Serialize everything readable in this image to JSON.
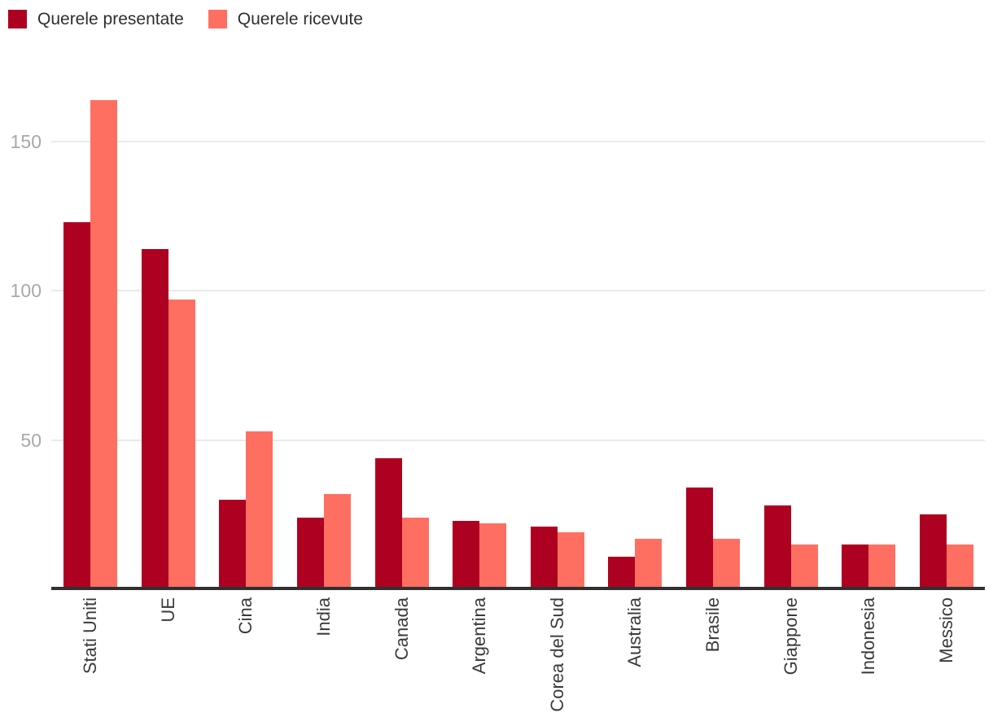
{
  "legend": {
    "items": [
      {
        "label": "Querele presentate",
        "color": "#AE0021"
      },
      {
        "label": "Querele ricevute",
        "color": "#FF6F61"
      }
    ]
  },
  "chart_data": {
    "type": "bar",
    "categories": [
      "Stati Uniti",
      "UE",
      "Cina",
      "India",
      "Canada",
      "Argentina",
      "Corea del Sud",
      "Australia",
      "Brasile",
      "Giappone",
      "Indonesia",
      "Messico"
    ],
    "series": [
      {
        "name": "Querele presentate",
        "color": "#AE0021",
        "values": [
          123,
          114,
          30,
          24,
          44,
          23,
          21,
          11,
          34,
          28,
          15,
          25
        ]
      },
      {
        "name": "Querele ricevute",
        "color": "#FF6F61",
        "values": [
          164,
          97,
          53,
          32,
          24,
          22,
          19,
          17,
          17,
          15,
          15,
          15
        ]
      }
    ],
    "title": "",
    "xlabel": "",
    "ylabel": "",
    "yticks": [
      50,
      100,
      150
    ],
    "ylim": [
      0,
      175
    ],
    "grid": "horizontal",
    "legend_position": "top-left",
    "x_tick_rotation": -90
  }
}
